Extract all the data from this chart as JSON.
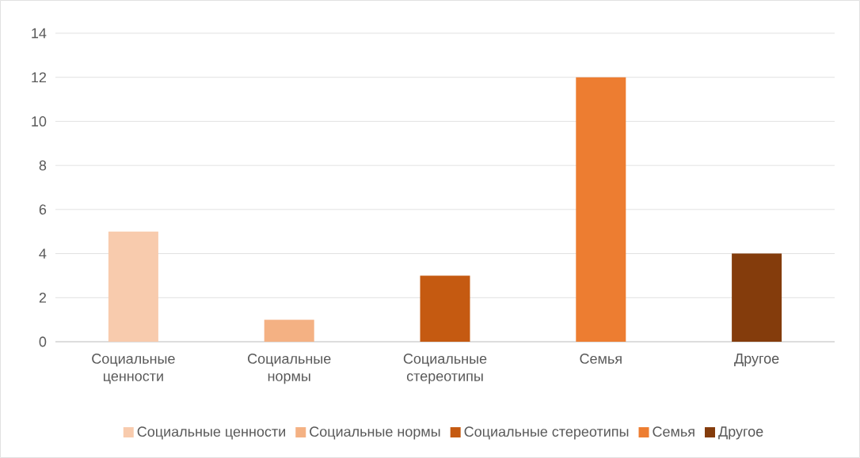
{
  "chart_data": {
    "type": "bar",
    "categories": [
      "Социальные ценности",
      "Социальные нормы",
      "Социальные стереотипы",
      "Семья",
      "Другое"
    ],
    "series": [
      {
        "name": "Социальные ценности",
        "color": "#f8cbad",
        "values": [
          5,
          null,
          null,
          null,
          null
        ]
      },
      {
        "name": "Социальные нормы",
        "color": "#f4b183",
        "values": [
          null,
          1,
          null,
          null,
          null
        ]
      },
      {
        "name": "Социальные стереотипы",
        "color": "#c55a11",
        "values": [
          null,
          null,
          3,
          null,
          null
        ]
      },
      {
        "name": "Семья",
        "color": "#ed7d31",
        "values": [
          null,
          null,
          null,
          12,
          null
        ]
      },
      {
        "name": "Другое",
        "color": "#843c0c",
        "values": [
          null,
          null,
          null,
          null,
          4
        ]
      }
    ],
    "ylim": [
      0,
      14
    ],
    "yticks": [
      0,
      2,
      4,
      6,
      8,
      10,
      12,
      14
    ],
    "grid": "y",
    "legend": "bottom"
  }
}
